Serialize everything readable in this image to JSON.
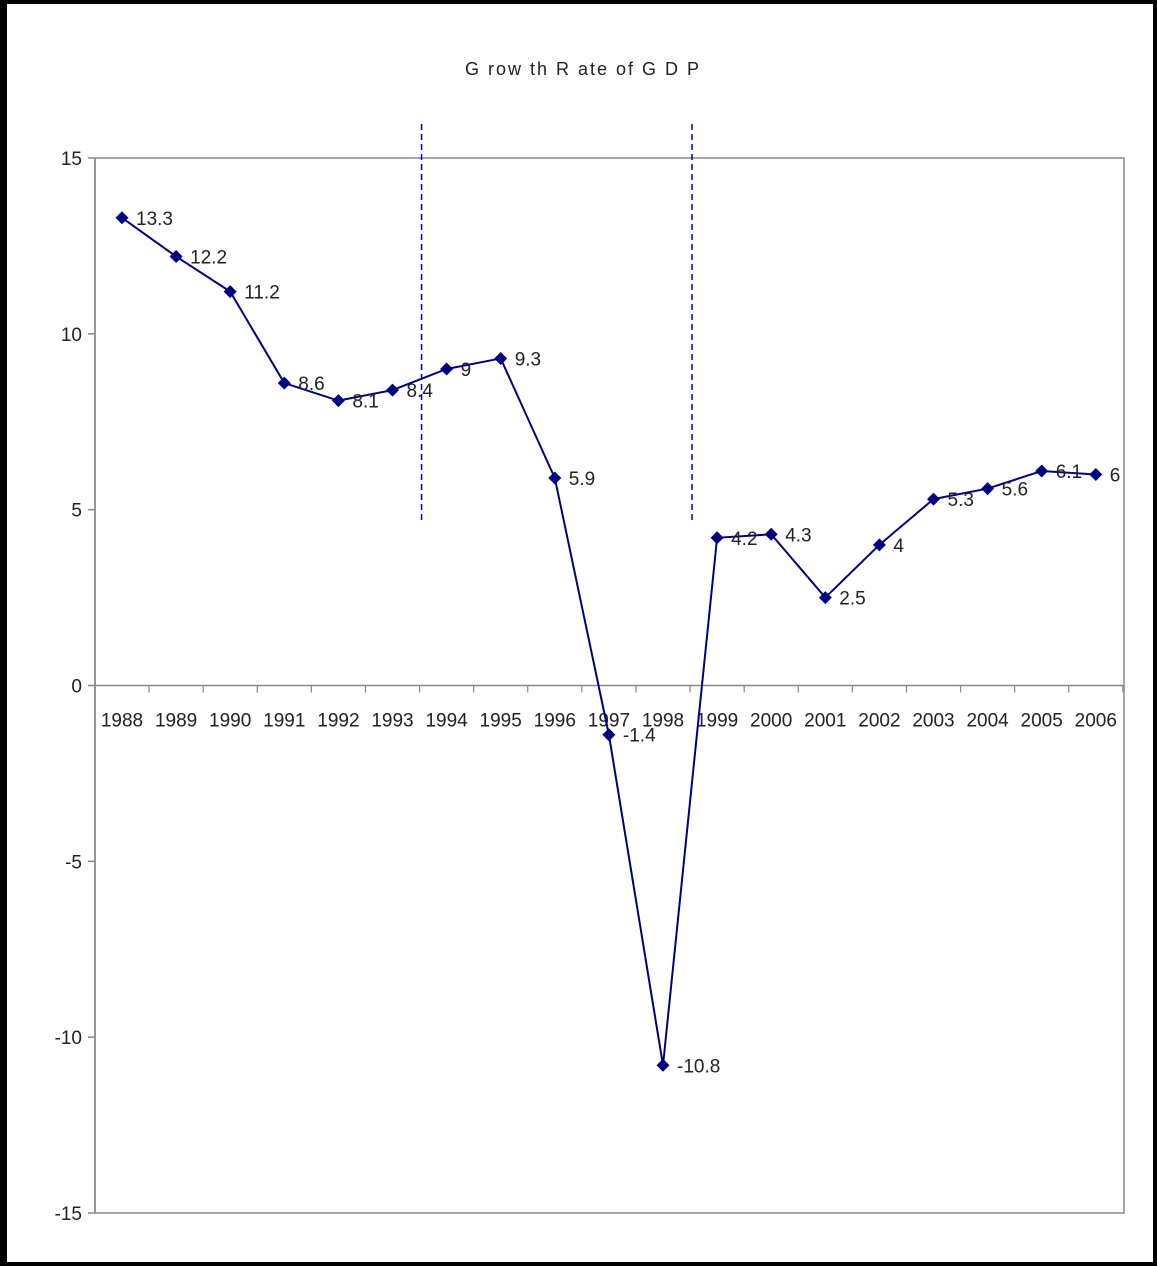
{
  "chart_data": {
    "type": "line",
    "title": "G row th R ate of G D P",
    "categories": [
      "1988",
      "1989",
      "1990",
      "1991",
      "1992",
      "1993",
      "1994",
      "1995",
      "1996",
      "1997",
      "1998",
      "1999",
      "2000",
      "2001",
      "2002",
      "2003",
      "2004",
      "2005",
      "2006"
    ],
    "series": [
      {
        "values": [
          13.3,
          12.2,
          11.2,
          8.6,
          8.1,
          8.4,
          9,
          9.3,
          5.9,
          -1.4,
          -10.8,
          4.2,
          4.3,
          2.5,
          4,
          5.3,
          5.6,
          6.1,
          6
        ],
        "labels": [
          "13.3",
          "12.2",
          "11.2",
          "8.6",
          "8.1",
          "8.4",
          "9",
          "9.3",
          "5.9",
          "-1.4",
          "-10.8",
          "4.2",
          "4.3",
          "2.5",
          "4",
          "5.3",
          "5.6",
          "6.1",
          "6"
        ]
      }
    ],
    "ylim": [
      -15,
      15
    ],
    "yticks": [
      "15",
      "10",
      "5",
      "0",
      "-5",
      "-10",
      "-15"
    ],
    "grid": false,
    "legend": "none",
    "reference_lines_between": [
      [
        "1993",
        "1994"
      ],
      [
        "1998",
        "1999"
      ]
    ],
    "colors": {
      "line": "#000080",
      "marker": "#000080",
      "reference": "#0000cc",
      "axis": "#888888"
    }
  }
}
